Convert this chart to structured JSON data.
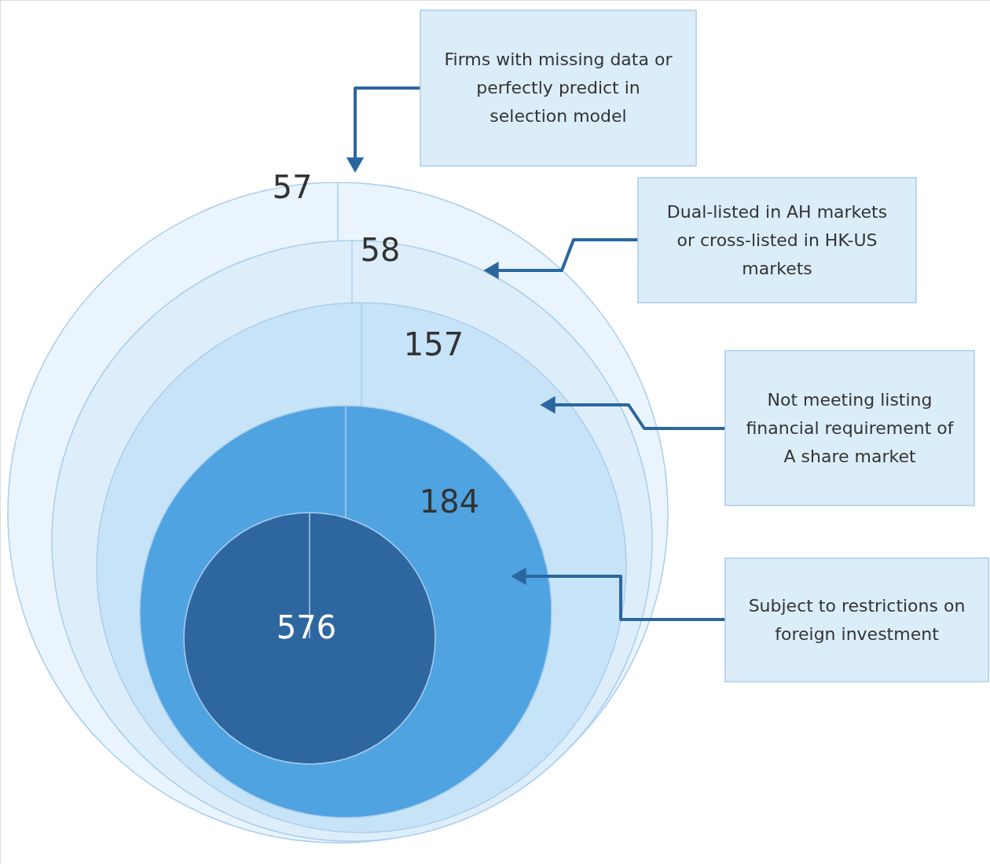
{
  "chart_data": {
    "type": "other",
    "values": [
      57,
      58,
      157,
      184,
      576
    ],
    "data_labels": true,
    "colors": [
      "#eaf4fc",
      "#ddeefa",
      "#c7e3f8",
      "#4fa3e0",
      "#2e67a0"
    ],
    "annotations": [
      "Firms with missing data or perfectly predict in selection model",
      "Dual-listed in AH markets or cross-listed in HK-US markets",
      "Not meeting listing financial requirement of A share market",
      "Subject to restrictions on foreign investment"
    ]
  }
}
